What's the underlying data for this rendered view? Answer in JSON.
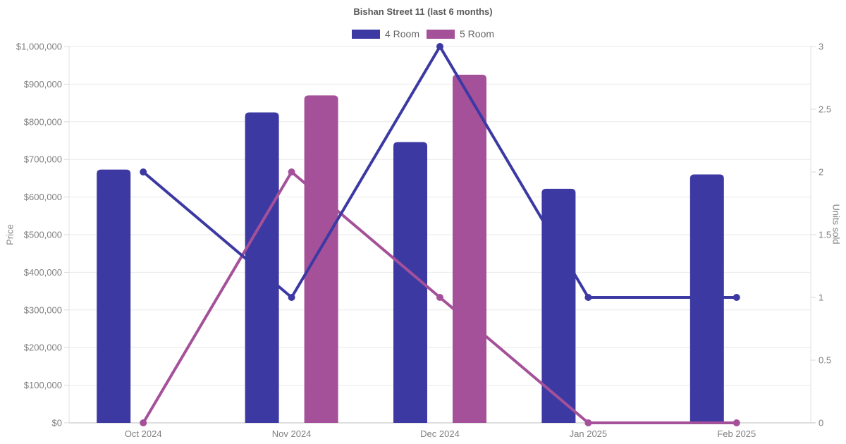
{
  "title": "Bishan Street 11 (last 6 months)",
  "legend": {
    "items": [
      {
        "label": "4 Room",
        "color": "#3C39A3"
      },
      {
        "label": "5 Room",
        "color": "#A4519A"
      }
    ]
  },
  "axes": {
    "left": {
      "title": "Price"
    },
    "right": {
      "title": "Units sold"
    }
  },
  "colors": {
    "background": "#FFFFFF",
    "grid": "#E9E9E9",
    "x_axis_line": "#C9C9C9",
    "side_axis_line": "#E2E2E2",
    "tick_mark": "#D9D9D9",
    "tick_text": "#808080",
    "title_text": "#595959",
    "series_4_room": "#3C39A3",
    "series_5_room": "#A4519A"
  },
  "chart_data": {
    "type": "combo_bar_line",
    "title": "Bishan Street 11 (last 6 months)",
    "categories": [
      "Oct 2024",
      "Nov 2024",
      "Dec 2024",
      "Jan 2025",
      "Feb 2025"
    ],
    "series": [
      {
        "name": "4 Room",
        "type": "bar",
        "axis": "left",
        "color": "#3C39A3",
        "values": [
          673000,
          825000,
          746000,
          622000,
          660000
        ]
      },
      {
        "name": "5 Room",
        "type": "bar",
        "axis": "left",
        "color": "#A4519A",
        "values": [
          null,
          870000,
          925000,
          null,
          null
        ]
      },
      {
        "name": "4 Room",
        "type": "line",
        "axis": "right",
        "color": "#3C39A3",
        "values": [
          2,
          1,
          3,
          1,
          1
        ]
      },
      {
        "name": "5 Room",
        "type": "line",
        "axis": "right",
        "color": "#A4519A",
        "values": [
          0,
          2,
          1,
          0,
          0
        ]
      }
    ],
    "left_axis": {
      "title": "Price",
      "min": 0,
      "max": 1000000,
      "step": 100000,
      "tick_labels": [
        "$0",
        "$100,000",
        "$200,000",
        "$300,000",
        "$400,000",
        "$500,000",
        "$600,000",
        "$700,000",
        "$800,000",
        "$900,000",
        "$1,000,000"
      ]
    },
    "right_axis": {
      "title": "Units sold",
      "min": 0,
      "max": 3,
      "step": 0.5,
      "tick_labels": [
        "0",
        "0.5",
        "1",
        "1.5",
        "2",
        "2.5",
        "3"
      ]
    },
    "grid": true,
    "legend_position": "top"
  }
}
